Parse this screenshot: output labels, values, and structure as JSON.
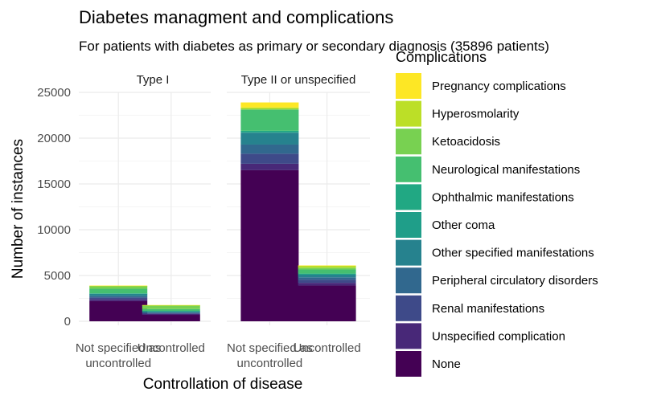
{
  "chart_data": {
    "type": "bar",
    "stacked": true,
    "title": "Diabetes managment and complications",
    "subtitle": "For patients with diabetes as primary or secondary diagnosis (35896 patients)",
    "xlabel": "Controllation of disease",
    "ylabel": "Number of instances",
    "ylim": [
      0,
      25000
    ],
    "yticks": [
      0,
      5000,
      10000,
      15000,
      20000,
      25000
    ],
    "ytick_labels": [
      "0",
      "5000",
      "10000",
      "15000",
      "20000",
      "25000"
    ],
    "grid": true,
    "legend": {
      "title": "Complications",
      "placement": "right"
    },
    "categories": [
      "Not specified as uncontrolled",
      "Uncontrolled"
    ],
    "facets": [
      "Type I",
      "Type II or unspecified"
    ],
    "series": [
      {
        "name": "None",
        "color": "#440154",
        "values": [
          [
            2200,
            700
          ],
          [
            16500,
            3900
          ]
        ]
      },
      {
        "name": "Unspecified complication",
        "color": "#482878",
        "values": [
          [
            200,
            100
          ],
          [
            700,
            300
          ]
        ]
      },
      {
        "name": "Renal manifestations",
        "color": "#3E4A89",
        "values": [
          [
            200,
            100
          ],
          [
            1100,
            350
          ]
        ]
      },
      {
        "name": "Peripheral circulatory disorders",
        "color": "#31688E",
        "values": [
          [
            150,
            60
          ],
          [
            1000,
            250
          ]
        ]
      },
      {
        "name": "Other specified manifestations",
        "color": "#26828E",
        "values": [
          [
            250,
            120
          ],
          [
            1300,
            300
          ]
        ]
      },
      {
        "name": "Other coma",
        "color": "#1F9E89",
        "values": [
          [
            10,
            20
          ],
          [
            50,
            30
          ]
        ]
      },
      {
        "name": "Ophthalmic manifestations",
        "color": "#21A883",
        "values": [
          [
            40,
            30
          ],
          [
            150,
            80
          ]
        ]
      },
      {
        "name": "Neurological manifestations",
        "color": "#45BF70",
        "values": [
          [
            500,
            200
          ],
          [
            2300,
            450
          ]
        ]
      },
      {
        "name": "Ketoacidosis",
        "color": "#78D151",
        "values": [
          [
            300,
            420
          ],
          [
            100,
            200
          ]
        ]
      },
      {
        "name": "Hyperosmolarity",
        "color": "#BCDF27",
        "values": [
          [
            10,
            5
          ],
          [
            150,
            200
          ]
        ]
      },
      {
        "name": "Pregnancy complications",
        "color": "#FDE725",
        "values": [
          [
            40,
            20
          ],
          [
            550,
            40
          ]
        ]
      }
    ]
  }
}
